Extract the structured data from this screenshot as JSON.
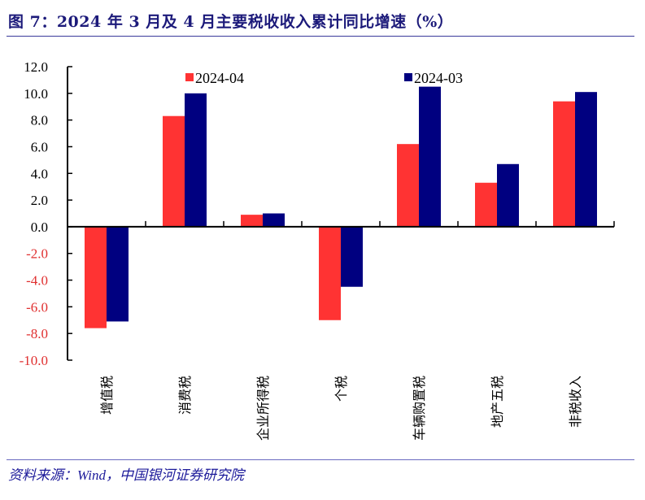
{
  "title": "图 7：2024 年 3 月及 4 月主要税收收入累计同比增速（%）",
  "source": "资料来源：Wind，中国银河证券研究院",
  "chart_data": {
    "type": "bar",
    "title": "图 7：2024 年 3 月及 4 月主要税收收入累计同比增速（%）",
    "xlabel": "",
    "ylabel": "",
    "ylim": [
      -10,
      12
    ],
    "yticks": [
      "12.0",
      "10.0",
      "8.0",
      "6.0",
      "4.0",
      "2.0",
      "0.0",
      "-2.0",
      "-4.0",
      "-6.0",
      "-8.0",
      "-10.0"
    ],
    "negative_tick_color": "#e03030",
    "grid": false,
    "legend_position": "top",
    "categories": [
      "增值税",
      "消费税",
      "企业所得税",
      "个税",
      "车辆购置税",
      "地产五税",
      "非税收入"
    ],
    "series": [
      {
        "name": "2024-04",
        "color": "#ff3333",
        "values": [
          -7.6,
          8.3,
          0.9,
          -7.0,
          6.2,
          3.3,
          9.4
        ]
      },
      {
        "name": "2024-03",
        "color": "#000080",
        "values": [
          -7.1,
          10.0,
          1.0,
          -4.5,
          10.5,
          4.7,
          10.1
        ]
      }
    ]
  }
}
